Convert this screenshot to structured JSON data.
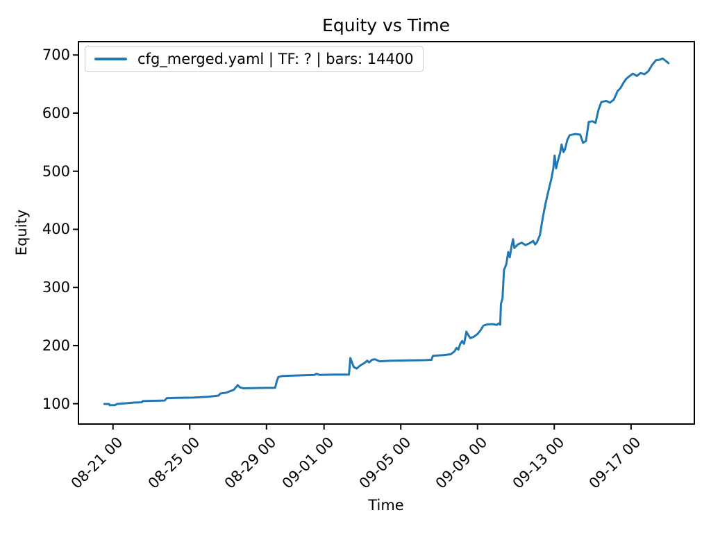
{
  "figure": {
    "background": "#ffffff",
    "text_color": "#000000"
  },
  "style": {
    "spine_color": "#000000",
    "tick_color": "#000000",
    "legend_border": "#cccccc",
    "legend_background": "#ffffff"
  },
  "chart_data": {
    "type": "line",
    "title": "Equity vs Time",
    "xlabel": "Time",
    "ylabel": "Equity",
    "grid": false,
    "x_unit_days_since": "08-21 00",
    "xlim": [
      -1.8,
      30.3
    ],
    "ylim": [
      65,
      723
    ],
    "yticks": [
      100,
      200,
      300,
      400,
      500,
      600,
      700
    ],
    "xticks": [
      {
        "pos": 0,
        "label": "08-21 00"
      },
      {
        "pos": 4,
        "label": "08-25 00"
      },
      {
        "pos": 8,
        "label": "08-29 00"
      },
      {
        "pos": 11,
        "label": "09-01 00"
      },
      {
        "pos": 15,
        "label": "09-05 00"
      },
      {
        "pos": 19,
        "label": "09-09 00"
      },
      {
        "pos": 23,
        "label": "09-13 00"
      },
      {
        "pos": 27,
        "label": "09-17 00"
      }
    ],
    "legend": {
      "position": "upper left",
      "entries": [
        {
          "label": "cfg_merged.yaml | TF: ? | bars: 14400",
          "color": "#1f77b4"
        }
      ]
    },
    "series": [
      {
        "name": "cfg_merged.yaml | TF: ? | bars: 14400",
        "color": "#1f77b4",
        "line_width": 3,
        "points": [
          [
            -0.45,
            99.5
          ],
          [
            -0.2,
            99.5
          ],
          [
            -0.18,
            97.5
          ],
          [
            0.1,
            97.5
          ],
          [
            0.2,
            99.5
          ],
          [
            0.6,
            100.5
          ],
          [
            1.1,
            102
          ],
          [
            1.5,
            102.5
          ],
          [
            1.55,
            104.5
          ],
          [
            2.1,
            105
          ],
          [
            2.7,
            105.5
          ],
          [
            2.8,
            109.5
          ],
          [
            3.3,
            110
          ],
          [
            4.2,
            110.5
          ],
          [
            5,
            112
          ],
          [
            5.5,
            114
          ],
          [
            5.6,
            117.5
          ],
          [
            5.9,
            119
          ],
          [
            6.3,
            124
          ],
          [
            6.5,
            132
          ],
          [
            6.62,
            128
          ],
          [
            6.8,
            126.5
          ],
          [
            7.5,
            127
          ],
          [
            8.45,
            127.5
          ],
          [
            8.55,
            140
          ],
          [
            8.62,
            146
          ],
          [
            8.8,
            147.5
          ],
          [
            9.5,
            148.5
          ],
          [
            10.5,
            149.5
          ],
          [
            10.6,
            151.5
          ],
          [
            10.78,
            149.5
          ],
          [
            11.5,
            150
          ],
          [
            12.3,
            150
          ],
          [
            12.37,
            178.5
          ],
          [
            12.55,
            163
          ],
          [
            12.7,
            160.5
          ],
          [
            12.9,
            166
          ],
          [
            13.1,
            170
          ],
          [
            13.25,
            174
          ],
          [
            13.35,
            171
          ],
          [
            13.5,
            175.5
          ],
          [
            13.65,
            176.5
          ],
          [
            13.9,
            173
          ],
          [
            14.5,
            174
          ],
          [
            15.5,
            174.5
          ],
          [
            16.3,
            175
          ],
          [
            16.6,
            175.5
          ],
          [
            16.68,
            182.5
          ],
          [
            17.2,
            183.5
          ],
          [
            17.6,
            185
          ],
          [
            17.8,
            190
          ],
          [
            17.9,
            196
          ],
          [
            18,
            193
          ],
          [
            18.1,
            203
          ],
          [
            18.2,
            208
          ],
          [
            18.3,
            203
          ],
          [
            18.42,
            224
          ],
          [
            18.5,
            219
          ],
          [
            18.62,
            213
          ],
          [
            18.8,
            215
          ],
          [
            19,
            220
          ],
          [
            19.15,
            226
          ],
          [
            19.3,
            234
          ],
          [
            19.5,
            236.5
          ],
          [
            19.8,
            237
          ],
          [
            20,
            235.5
          ],
          [
            20.1,
            238
          ],
          [
            20.18,
            236
          ],
          [
            20.22,
            272
          ],
          [
            20.3,
            281
          ],
          [
            20.38,
            330
          ],
          [
            20.5,
            340
          ],
          [
            20.6,
            361
          ],
          [
            20.68,
            352
          ],
          [
            20.78,
            372
          ],
          [
            20.85,
            383
          ],
          [
            20.92,
            368
          ],
          [
            21.1,
            374
          ],
          [
            21.3,
            377
          ],
          [
            21.5,
            373
          ],
          [
            21.7,
            376
          ],
          [
            21.9,
            380
          ],
          [
            22,
            374
          ],
          [
            22.1,
            378
          ],
          [
            22.25,
            390
          ],
          [
            22.4,
            420
          ],
          [
            22.55,
            445
          ],
          [
            22.7,
            467
          ],
          [
            22.85,
            487
          ],
          [
            22.95,
            505
          ],
          [
            23.02,
            527
          ],
          [
            23.1,
            505
          ],
          [
            23.18,
            517
          ],
          [
            23.3,
            531
          ],
          [
            23.38,
            546
          ],
          [
            23.48,
            533
          ],
          [
            23.55,
            537
          ],
          [
            23.68,
            554
          ],
          [
            23.8,
            562
          ],
          [
            24.1,
            564
          ],
          [
            24.35,
            563
          ],
          [
            24.5,
            549
          ],
          [
            24.65,
            552
          ],
          [
            24.8,
            585
          ],
          [
            25,
            586
          ],
          [
            25.15,
            583
          ],
          [
            25.3,
            605
          ],
          [
            25.45,
            619
          ],
          [
            25.7,
            621
          ],
          [
            25.9,
            618
          ],
          [
            26.1,
            623
          ],
          [
            26.3,
            638
          ],
          [
            26.45,
            643
          ],
          [
            26.6,
            652
          ],
          [
            26.75,
            659
          ],
          [
            26.9,
            663
          ],
          [
            27.1,
            668
          ],
          [
            27.3,
            664
          ],
          [
            27.5,
            669
          ],
          [
            27.7,
            667
          ],
          [
            27.9,
            672
          ],
          [
            28.1,
            683
          ],
          [
            28.3,
            691
          ],
          [
            28.5,
            692
          ],
          [
            28.65,
            694
          ],
          [
            28.8,
            690
          ],
          [
            28.95,
            686
          ]
        ]
      }
    ]
  }
}
